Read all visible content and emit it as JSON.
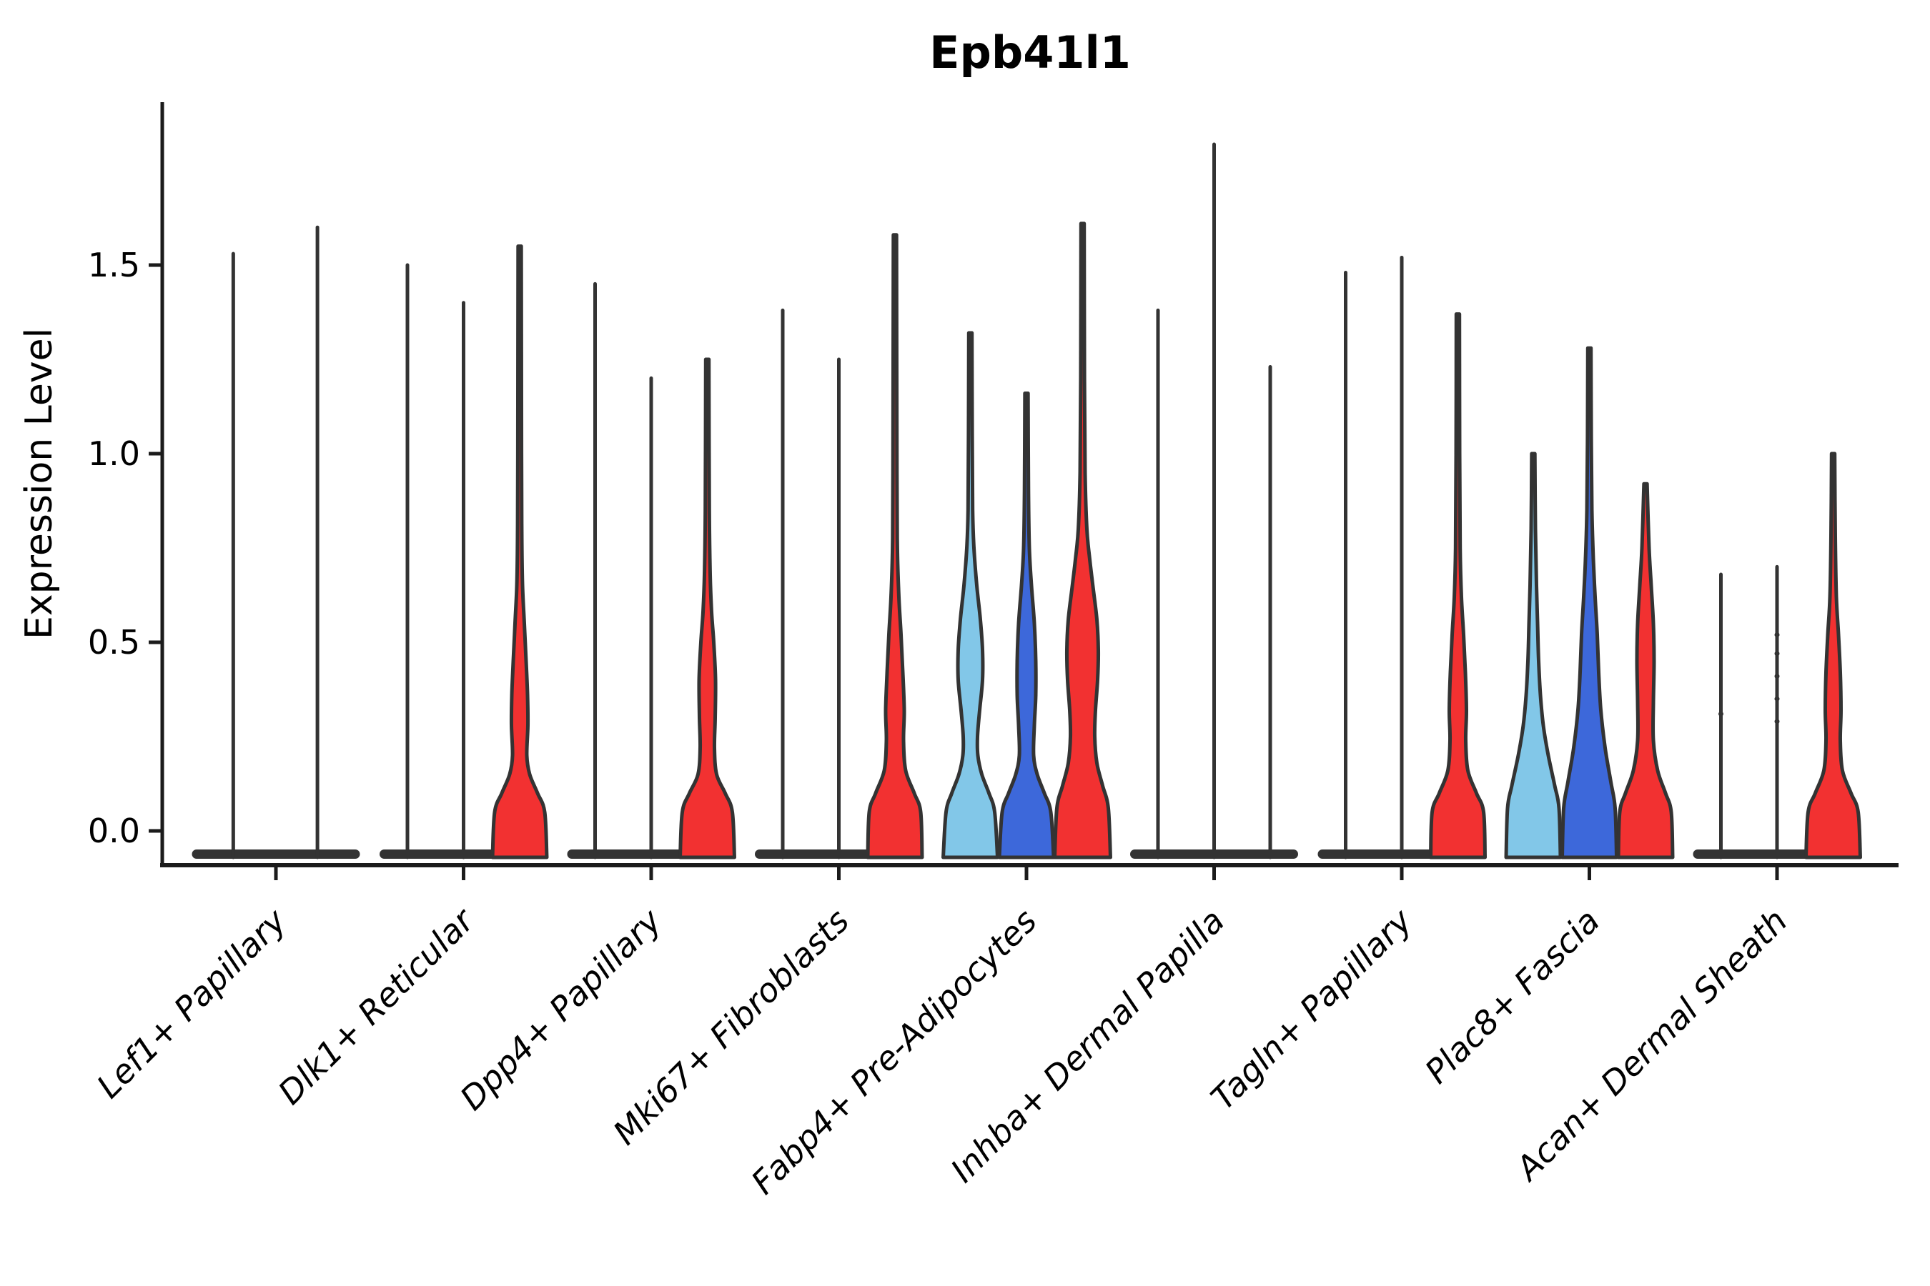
{
  "title": "Epb41l1",
  "y_axis": {
    "label": "Expression Level",
    "ticks": [
      {
        "label": "0.0",
        "value": 0.0
      },
      {
        "label": "0.5",
        "value": 0.5
      },
      {
        "label": "1.0",
        "value": 1.0
      },
      {
        "label": "1.5",
        "value": 1.5
      }
    ]
  },
  "colors": {
    "skyblue": "#82C7E8",
    "blue": "#3D68DA",
    "red": "#F23131",
    "outline": "#333333",
    "axis": "#1b1b1b",
    "text": "#000000"
  },
  "chart_data": {
    "type": "violin",
    "title": "Epb41l1",
    "ylabel": "Expression Level",
    "ylim": [
      -0.09,
      1.93
    ],
    "yticks": [
      0.0,
      0.5,
      1.0,
      1.5
    ],
    "legend": "none",
    "grid": false,
    "note": "Grouped violin plot; each category holds up to 3 violins. 'line' violins are degenerate (near-zero width) shown as vertical stems over a flat base; 'violin' entries are filled KDE shapes. 'max' is the top expression value reached; 'profile' lists [value, half-width-px] pairs; 'points' are small jitter dots at given values.",
    "groups": [
      {
        "label": "Lef1+ Papillary",
        "violins": [
          {
            "kind": "line",
            "slot": -0.76,
            "max": 1.53
          },
          {
            "kind": "line",
            "slot": 0.74,
            "max": 1.6
          }
        ]
      },
      {
        "label": "Dlk1+ Reticular",
        "violins": [
          {
            "kind": "line",
            "slot": -1,
            "max": 1.5
          },
          {
            "kind": "line",
            "slot": 0,
            "max": 1.4
          },
          {
            "kind": "violin",
            "slot": 1,
            "max": 1.55,
            "color": "red",
            "profile": [
              [
                0,
                38
              ],
              [
                0.05,
                35
              ],
              [
                0.1,
                25
              ],
              [
                0.15,
                14
              ],
              [
                0.2,
                10
              ],
              [
                0.28,
                11.5
              ],
              [
                0.36,
                11
              ],
              [
                0.45,
                9
              ],
              [
                0.55,
                6.5
              ],
              [
                0.65,
                4
              ],
              [
                0.78,
                3
              ],
              [
                1.0,
                2.6
              ],
              [
                1.55,
                2.2
              ]
            ]
          }
        ]
      },
      {
        "label": "Dpp4+ Papillary",
        "violins": [
          {
            "kind": "line",
            "slot": -1,
            "max": 1.45
          },
          {
            "kind": "line",
            "slot": 0,
            "max": 1.2
          },
          {
            "kind": "violin",
            "slot": 1,
            "max": 1.25,
            "color": "red",
            "profile": [
              [
                0,
                38
              ],
              [
                0.05,
                35
              ],
              [
                0.1,
                25
              ],
              [
                0.15,
                13
              ],
              [
                0.22,
                10
              ],
              [
                0.3,
                11
              ],
              [
                0.4,
                11.5
              ],
              [
                0.5,
                9
              ],
              [
                0.58,
                6
              ],
              [
                0.68,
                4
              ],
              [
                0.85,
                2.8
              ],
              [
                1.25,
                2.2
              ]
            ]
          }
        ]
      },
      {
        "label": "Mki67+ Fibroblasts",
        "violins": [
          {
            "kind": "line",
            "slot": -1,
            "max": 1.38
          },
          {
            "kind": "line",
            "slot": 0,
            "max": 1.25
          },
          {
            "kind": "violin",
            "slot": 1,
            "max": 1.58,
            "color": "red",
            "profile": [
              [
                0,
                38
              ],
              [
                0.05,
                36
              ],
              [
                0.1,
                27
              ],
              [
                0.16,
                15
              ],
              [
                0.24,
                12
              ],
              [
                0.32,
                13
              ],
              [
                0.42,
                11
              ],
              [
                0.52,
                8.5
              ],
              [
                0.62,
                5.5
              ],
              [
                0.74,
                3.5
              ],
              [
                0.95,
                2.8
              ],
              [
                1.58,
                2.2
              ]
            ]
          }
        ]
      },
      {
        "label": "Fabp4+ Pre-Adipocytes",
        "violins": [
          {
            "kind": "violin",
            "slot": -1,
            "max": 1.32,
            "color": "skyblue",
            "profile": [
              [
                0,
                38
              ],
              [
                0.05,
                34
              ],
              [
                0.1,
                26
              ],
              [
                0.15,
                16
              ],
              [
                0.2,
                10.5
              ],
              [
                0.25,
                10
              ],
              [
                0.32,
                13
              ],
              [
                0.4,
                17
              ],
              [
                0.48,
                17
              ],
              [
                0.56,
                14
              ],
              [
                0.65,
                9
              ],
              [
                0.75,
                5
              ],
              [
                0.85,
                3.2
              ],
              [
                1.05,
                2.6
              ],
              [
                1.32,
                2.2
              ]
            ]
          },
          {
            "kind": "violin",
            "slot": 0,
            "max": 1.16,
            "color": "blue",
            "profile": [
              [
                0,
                38
              ],
              [
                0.05,
                34
              ],
              [
                0.1,
                25
              ],
              [
                0.15,
                15
              ],
              [
                0.2,
                10
              ],
              [
                0.28,
                11
              ],
              [
                0.36,
                13
              ],
              [
                0.45,
                13
              ],
              [
                0.55,
                11
              ],
              [
                0.65,
                7
              ],
              [
                0.75,
                4
              ],
              [
                0.9,
                2.8
              ],
              [
                1.16,
                2.2
              ]
            ]
          },
          {
            "kind": "violin",
            "slot": 1,
            "max": 1.61,
            "color": "red",
            "profile": [
              [
                0,
                39
              ],
              [
                0.06,
                36
              ],
              [
                0.12,
                28
              ],
              [
                0.18,
                20
              ],
              [
                0.25,
                17
              ],
              [
                0.32,
                18
              ],
              [
                0.4,
                21
              ],
              [
                0.48,
                22
              ],
              [
                0.56,
                20
              ],
              [
                0.64,
                15
              ],
              [
                0.72,
                10
              ],
              [
                0.8,
                6
              ],
              [
                0.95,
                3.5
              ],
              [
                1.2,
                2.6
              ],
              [
                1.61,
                2.2
              ]
            ]
          }
        ]
      },
      {
        "label": "Inhba+ Dermal Papilla",
        "violins": [
          {
            "kind": "line",
            "slot": -1,
            "max": 1.38
          },
          {
            "kind": "line",
            "slot": 0,
            "max": 1.82
          },
          {
            "kind": "line",
            "slot": 1,
            "max": 1.23
          }
        ]
      },
      {
        "label": "Tagln+ Papillary",
        "violins": [
          {
            "kind": "line",
            "slot": -1,
            "max": 1.48
          },
          {
            "kind": "line",
            "slot": 0,
            "max": 1.52
          },
          {
            "kind": "violin",
            "slot": 1,
            "max": 1.37,
            "color": "red",
            "profile": [
              [
                0,
                38
              ],
              [
                0.05,
                36
              ],
              [
                0.1,
                26
              ],
              [
                0.16,
                14
              ],
              [
                0.24,
                11
              ],
              [
                0.32,
                12
              ],
              [
                0.42,
                10.5
              ],
              [
                0.52,
                8
              ],
              [
                0.62,
                5
              ],
              [
                0.75,
                3.2
              ],
              [
                1.0,
                2.5
              ],
              [
                1.37,
                2.2
              ]
            ]
          }
        ]
      },
      {
        "label": "Plac8+ Fascia",
        "violins": [
          {
            "kind": "violin",
            "slot": -1,
            "max": 1.0,
            "color": "skyblue",
            "profile": [
              [
                0,
                38
              ],
              [
                0.06,
                36
              ],
              [
                0.12,
                30
              ],
              [
                0.2,
                21
              ],
              [
                0.28,
                14
              ],
              [
                0.36,
                10
              ],
              [
                0.45,
                7.5
              ],
              [
                0.55,
                6
              ],
              [
                0.65,
                4.5
              ],
              [
                0.8,
                3
              ],
              [
                1.0,
                2.2
              ]
            ]
          },
          {
            "kind": "violin",
            "slot": 0,
            "max": 1.28,
            "color": "blue",
            "profile": [
              [
                0,
                38
              ],
              [
                0.06,
                36
              ],
              [
                0.13,
                30
              ],
              [
                0.22,
                22
              ],
              [
                0.32,
                16
              ],
              [
                0.42,
                13
              ],
              [
                0.52,
                11
              ],
              [
                0.62,
                8
              ],
              [
                0.72,
                5.5
              ],
              [
                0.85,
                3.5
              ],
              [
                1.05,
                2.6
              ],
              [
                1.28,
                2.2
              ]
            ]
          },
          {
            "kind": "violin",
            "slot": 1,
            "max": 0.92,
            "color": "red",
            "profile": [
              [
                0,
                38
              ],
              [
                0.05,
                36
              ],
              [
                0.1,
                28
              ],
              [
                0.16,
                17
              ],
              [
                0.24,
                11
              ],
              [
                0.34,
                11
              ],
              [
                0.45,
                12
              ],
              [
                0.55,
                11
              ],
              [
                0.65,
                8
              ],
              [
                0.75,
                5
              ],
              [
                0.92,
                2.2
              ]
            ]
          }
        ]
      },
      {
        "label": "Acan+ Dermal Sheath",
        "violins": [
          {
            "kind": "line",
            "slot": -1,
            "max": 0.68,
            "points": [
              0.31
            ]
          },
          {
            "kind": "line",
            "slot": 0,
            "max": 0.7,
            "points": [
              0.29,
              0.35,
              0.41,
              0.47,
              0.52
            ]
          },
          {
            "kind": "violin",
            "slot": 1,
            "max": 1.0,
            "color": "red",
            "profile": [
              [
                0,
                38
              ],
              [
                0.05,
                35
              ],
              [
                0.1,
                25
              ],
              [
                0.16,
                13
              ],
              [
                0.24,
                10
              ],
              [
                0.32,
                11
              ],
              [
                0.42,
                10
              ],
              [
                0.52,
                7.5
              ],
              [
                0.62,
                4.5
              ],
              [
                0.78,
                3
              ],
              [
                1.0,
                2.2
              ]
            ]
          }
        ]
      }
    ]
  }
}
